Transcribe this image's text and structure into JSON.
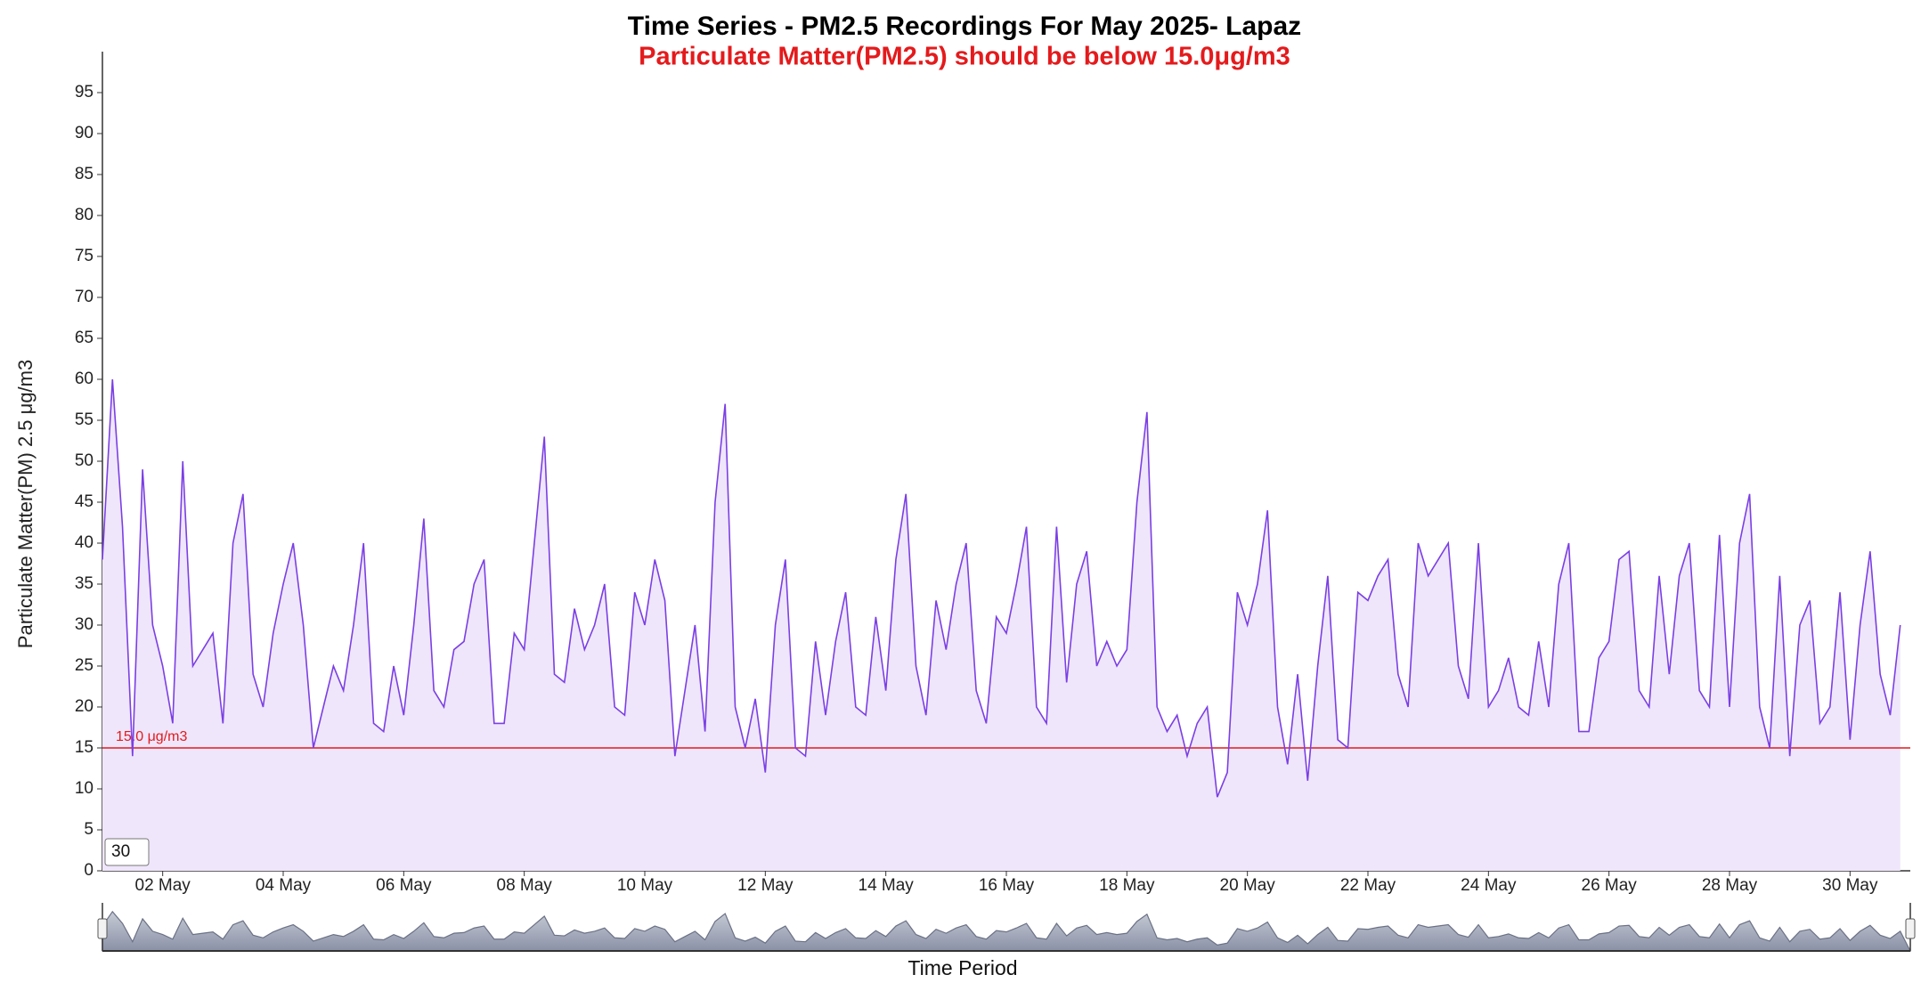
{
  "chart_data": {
    "type": "line",
    "title": "Time Series - PM2.5 Recordings For May 2025- Lapaz",
    "subtitle": "Particulate Matter(PM2.5) should be below 15.0μg/m3",
    "y_label": "Particulate Matter(PM) 2.5 μg/m3",
    "x_label": "Time Period",
    "window_input": "30",
    "color": "#7b3fe4",
    "fill": "#efe6fb",
    "threshold": {
      "value": 15,
      "label": "15.0 μg/m3",
      "color": "#e41a1c"
    },
    "ylim": [
      0,
      100
    ],
    "yticks": [
      0,
      5,
      10,
      15,
      20,
      25,
      30,
      35,
      40,
      45,
      50,
      55,
      60,
      65,
      70,
      75,
      80,
      85,
      90,
      95
    ],
    "xlim": [
      "2025-05-01 00:00",
      "2025-05-31 00:00"
    ],
    "xticks": [
      {
        "value": "2025-05-02 00:00",
        "label": "02 May"
      },
      {
        "value": "2025-05-04 00:00",
        "label": "04 May"
      },
      {
        "value": "2025-05-06 00:00",
        "label": "06 May"
      },
      {
        "value": "2025-05-08 00:00",
        "label": "08 May"
      },
      {
        "value": "2025-05-10 00:00",
        "label": "10 May"
      },
      {
        "value": "2025-05-12 00:00",
        "label": "12 May"
      },
      {
        "value": "2025-05-14 00:00",
        "label": "14 May"
      },
      {
        "value": "2025-05-16 00:00",
        "label": "16 May"
      },
      {
        "value": "2025-05-18 00:00",
        "label": "18 May"
      },
      {
        "value": "2025-05-20 00:00",
        "label": "20 May"
      },
      {
        "value": "2025-05-22 00:00",
        "label": "22 May"
      },
      {
        "value": "2025-05-24 00:00",
        "label": "24 May"
      },
      {
        "value": "2025-05-26 00:00",
        "label": "26 May"
      },
      {
        "value": "2025-05-28 00:00",
        "label": "28 May"
      },
      {
        "value": "2025-05-30 00:00",
        "label": "30 May"
      }
    ],
    "x": [
      "2025-05-01 00:00",
      "2025-05-01 04:00",
      "2025-05-01 08:00",
      "2025-05-01 12:00",
      "2025-05-01 16:00",
      "2025-05-01 20:00",
      "2025-05-02 00:00",
      "2025-05-02 04:00",
      "2025-05-02 08:00",
      "2025-05-02 12:00",
      "2025-05-02 16:00",
      "2025-05-02 20:00",
      "2025-05-03 00:00",
      "2025-05-03 04:00",
      "2025-05-03 08:00",
      "2025-05-03 12:00",
      "2025-05-03 16:00",
      "2025-05-03 20:00",
      "2025-05-04 00:00",
      "2025-05-04 04:00",
      "2025-05-04 08:00",
      "2025-05-04 12:00",
      "2025-05-04 16:00",
      "2025-05-04 20:00",
      "2025-05-05 00:00",
      "2025-05-05 04:00",
      "2025-05-05 08:00",
      "2025-05-05 12:00",
      "2025-05-05 16:00",
      "2025-05-05 20:00",
      "2025-05-06 00:00",
      "2025-05-06 04:00",
      "2025-05-06 08:00",
      "2025-05-06 12:00",
      "2025-05-06 16:00",
      "2025-05-06 20:00",
      "2025-05-07 00:00",
      "2025-05-07 04:00",
      "2025-05-07 08:00",
      "2025-05-07 12:00",
      "2025-05-07 16:00",
      "2025-05-07 20:00",
      "2025-05-08 00:00",
      "2025-05-08 04:00",
      "2025-05-08 08:00",
      "2025-05-08 12:00",
      "2025-05-08 16:00",
      "2025-05-08 20:00",
      "2025-05-09 00:00",
      "2025-05-09 04:00",
      "2025-05-09 08:00",
      "2025-05-09 12:00",
      "2025-05-09 16:00",
      "2025-05-09 20:00",
      "2025-05-10 00:00",
      "2025-05-10 04:00",
      "2025-05-10 08:00",
      "2025-05-10 12:00",
      "2025-05-10 16:00",
      "2025-05-10 20:00",
      "2025-05-11 00:00",
      "2025-05-11 04:00",
      "2025-05-11 08:00",
      "2025-05-11 12:00",
      "2025-05-11 16:00",
      "2025-05-11 20:00",
      "2025-05-12 00:00",
      "2025-05-12 04:00",
      "2025-05-12 08:00",
      "2025-05-12 12:00",
      "2025-05-12 16:00",
      "2025-05-12 20:00",
      "2025-05-13 00:00",
      "2025-05-13 04:00",
      "2025-05-13 08:00",
      "2025-05-13 12:00",
      "2025-05-13 16:00",
      "2025-05-13 20:00",
      "2025-05-14 00:00",
      "2025-05-14 04:00",
      "2025-05-14 08:00",
      "2025-05-14 12:00",
      "2025-05-14 16:00",
      "2025-05-14 20:00",
      "2025-05-15 00:00",
      "2025-05-15 04:00",
      "2025-05-15 08:00",
      "2025-05-15 12:00",
      "2025-05-15 16:00",
      "2025-05-15 20:00",
      "2025-05-16 00:00",
      "2025-05-16 04:00",
      "2025-05-16 08:00",
      "2025-05-16 12:00",
      "2025-05-16 16:00",
      "2025-05-16 20:00",
      "2025-05-17 00:00",
      "2025-05-17 04:00",
      "2025-05-17 08:00",
      "2025-05-17 12:00",
      "2025-05-17 16:00",
      "2025-05-17 20:00",
      "2025-05-18 00:00",
      "2025-05-18 04:00",
      "2025-05-18 08:00",
      "2025-05-18 12:00",
      "2025-05-18 16:00",
      "2025-05-18 20:00",
      "2025-05-19 00:00",
      "2025-05-19 04:00",
      "2025-05-19 08:00",
      "2025-05-19 12:00",
      "2025-05-19 16:00",
      "2025-05-19 20:00",
      "2025-05-20 00:00",
      "2025-05-20 04:00",
      "2025-05-20 08:00",
      "2025-05-20 12:00",
      "2025-05-20 16:00",
      "2025-05-20 20:00",
      "2025-05-21 00:00",
      "2025-05-21 04:00",
      "2025-05-21 08:00",
      "2025-05-21 12:00",
      "2025-05-21 16:00",
      "2025-05-21 20:00",
      "2025-05-22 00:00",
      "2025-05-22 04:00",
      "2025-05-22 08:00",
      "2025-05-22 12:00",
      "2025-05-22 16:00",
      "2025-05-22 20:00",
      "2025-05-23 00:00",
      "2025-05-23 04:00",
      "2025-05-23 08:00",
      "2025-05-23 12:00",
      "2025-05-23 16:00",
      "2025-05-23 20:00",
      "2025-05-24 00:00",
      "2025-05-24 04:00",
      "2025-05-24 08:00",
      "2025-05-24 12:00",
      "2025-05-24 16:00",
      "2025-05-24 20:00",
      "2025-05-25 00:00",
      "2025-05-25 04:00",
      "2025-05-25 08:00",
      "2025-05-25 12:00",
      "2025-05-25 16:00",
      "2025-05-25 20:00",
      "2025-05-26 00:00",
      "2025-05-26 04:00",
      "2025-05-26 08:00",
      "2025-05-26 12:00",
      "2025-05-26 16:00",
      "2025-05-26 20:00",
      "2025-05-27 00:00",
      "2025-05-27 04:00",
      "2025-05-27 08:00",
      "2025-05-27 12:00",
      "2025-05-27 16:00",
      "2025-05-27 20:00",
      "2025-05-28 00:00",
      "2025-05-28 04:00",
      "2025-05-28 08:00",
      "2025-05-28 12:00",
      "2025-05-28 16:00",
      "2025-05-28 20:00",
      "2025-05-29 00:00",
      "2025-05-29 04:00",
      "2025-05-29 08:00",
      "2025-05-29 12:00",
      "2025-05-29 16:00",
      "2025-05-29 20:00",
      "2025-05-30 00:00",
      "2025-05-30 04:00",
      "2025-05-30 08:00",
      "2025-05-30 12:00",
      "2025-05-30 16:00",
      "2025-05-30 20:00"
    ],
    "values": [
      38,
      60,
      42,
      14,
      49,
      30,
      25,
      18,
      50,
      25,
      27,
      29,
      18,
      40,
      46,
      24,
      20,
      29,
      35,
      40,
      30,
      15,
      20,
      25,
      22,
      30,
      40,
      18,
      17,
      25,
      19,
      30,
      43,
      22,
      20,
      27,
      28,
      35,
      38,
      18,
      18,
      29,
      27,
      40,
      53,
      24,
      23,
      32,
      27,
      30,
      35,
      20,
      19,
      34,
      30,
      38,
      33,
      14,
      22,
      30,
      17,
      45,
      57,
      20,
      15,
      21,
      12,
      30,
      38,
      15,
      14,
      28,
      19,
      28,
      34,
      20,
      19,
      31,
      22,
      38,
      46,
      25,
      19,
      33,
      27,
      35,
      40,
      22,
      18,
      31,
      29,
      35,
      42,
      20,
      18,
      42,
      23,
      35,
      39,
      25,
      28,
      25,
      27,
      45,
      56,
      20,
      17,
      19,
      14,
      18,
      20,
      9,
      12,
      34,
      30,
      35,
      44,
      20,
      13,
      24,
      11,
      25,
      36,
      16,
      15,
      34,
      33,
      36,
      38,
      24,
      20,
      40,
      36,
      38,
      40,
      25,
      21,
      40,
      20,
      22,
      26,
      20,
      19,
      28,
      20,
      35,
      40,
      17,
      17,
      26,
      28,
      38,
      39,
      22,
      20,
      36,
      24,
      36,
      40,
      22,
      20,
      41,
      20,
      40,
      46,
      20,
      15,
      36,
      14,
      30,
      33,
      18,
      20,
      34,
      16,
      30,
      39,
      24,
      19,
      30
    ]
  }
}
